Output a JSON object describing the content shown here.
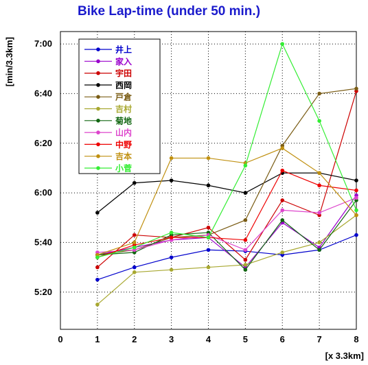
{
  "chart_data": {
    "type": "line",
    "title": "Bike Lap-time (under 50 min.)",
    "ylabel": "[min/3.3km]",
    "xlabel": "[x 3.3km]",
    "xlim": [
      0,
      8
    ],
    "ylim_seconds": [
      305,
      425
    ],
    "x_ticks": [
      0,
      1,
      2,
      3,
      4,
      5,
      6,
      7,
      8
    ],
    "y_ticks": [
      {
        "value": 320,
        "label": "5:20"
      },
      {
        "value": 340,
        "label": "5:40"
      },
      {
        "value": 360,
        "label": "6:00"
      },
      {
        "value": 380,
        "label": "6:20"
      },
      {
        "value": 400,
        "label": "6:40"
      },
      {
        "value": 420,
        "label": "7:00"
      }
    ],
    "grid": true,
    "legend_position": "top-left",
    "x": [
      1,
      2,
      3,
      4,
      5,
      6,
      7,
      8
    ],
    "series": [
      {
        "name": "井上",
        "color": "#0000cc",
        "values": [
          325,
          330,
          334,
          337,
          336.5,
          335,
          337,
          343
        ]
      },
      {
        "name": "家入",
        "color": "#9900cc",
        "values": [
          335,
          338,
          341,
          342,
          330,
          348,
          338,
          359
        ]
      },
      {
        "name": "宇田",
        "color": "#cc0000",
        "values": [
          330,
          343,
          342,
          346,
          333,
          357,
          351,
          401
        ]
      },
      {
        "name": "西岡",
        "color": "#000000",
        "values": [
          352,
          364,
          365,
          363,
          360,
          368,
          368,
          365
        ]
      },
      {
        "name": "戸倉",
        "color": "#7a5c14",
        "values": [
          335,
          337,
          342,
          343,
          349,
          379,
          400,
          402
        ]
      },
      {
        "name": "吉村",
        "color": "#a8a830",
        "values": [
          315,
          328,
          329,
          330,
          331,
          336,
          340,
          351
        ]
      },
      {
        "name": "菊地",
        "color": "#116611",
        "values": [
          335,
          336,
          343,
          344,
          329,
          349,
          337,
          357
        ]
      },
      {
        "name": "山内",
        "color": "#dd44cc",
        "values": [
          336,
          337,
          341,
          343,
          337,
          353,
          352,
          358
        ]
      },
      {
        "name": "中野",
        "color": "#ee0000",
        "values": [
          334,
          339,
          342,
          342,
          341,
          369,
          363,
          361
        ]
      },
      {
        "name": "吉本",
        "color": "#c09010",
        "values": [
          335,
          340,
          374,
          374,
          372,
          378,
          368,
          351
        ]
      },
      {
        "name": "小菅",
        "color": "#33ee33",
        "values": [
          334,
          338,
          344,
          342,
          371,
          420,
          389,
          353
        ]
      }
    ]
  }
}
